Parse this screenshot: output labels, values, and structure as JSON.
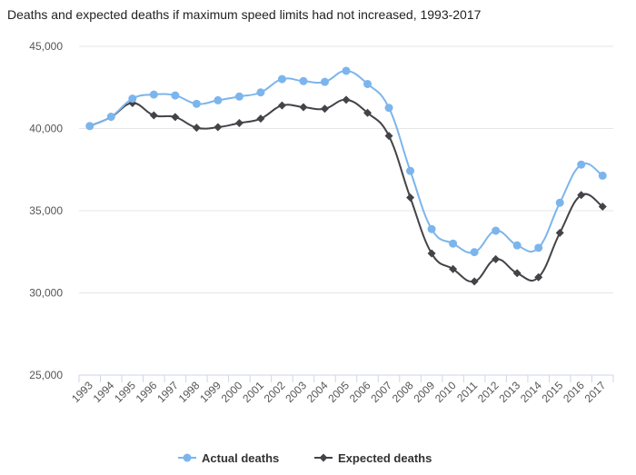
{
  "chart_data": {
    "type": "line",
    "title": "Deaths and expected deaths if maximum speed limits had not increased, 1993-2017",
    "xlabel": "",
    "ylabel": "",
    "categories": [
      "1993",
      "1994",
      "1995",
      "1996",
      "1997",
      "1998",
      "1999",
      "2000",
      "2001",
      "2002",
      "2003",
      "2004",
      "2005",
      "2006",
      "2007",
      "2008",
      "2009",
      "2010",
      "2011",
      "2012",
      "2013",
      "2014",
      "2015",
      "2016",
      "2017"
    ],
    "ylim": [
      25000,
      45000
    ],
    "yticks": [
      25000,
      30000,
      35000,
      40000,
      45000
    ],
    "ytick_labels": [
      "25,000",
      "30,000",
      "35,000",
      "40,000",
      "45,000"
    ],
    "grid": true,
    "legend": "bottom-center",
    "series": [
      {
        "name": "Actual deaths",
        "color": "#7cb5ec",
        "marker": "circle",
        "values": [
          40150,
          40716,
          41817,
          42065,
          42013,
          41501,
          41717,
          41945,
          42196,
          43005,
          42884,
          42836,
          43510,
          42708,
          41259,
          37423,
          33883,
          32999,
          32479,
          33782,
          32893,
          32744,
          35484,
          37806,
          37133
        ]
      },
      {
        "name": "Expected deaths",
        "color": "#434348",
        "marker": "diamond",
        "values": [
          40150,
          40700,
          41550,
          40800,
          40700,
          40050,
          40080,
          40330,
          40600,
          41400,
          41300,
          41200,
          41750,
          40950,
          39550,
          35800,
          32400,
          31450,
          30700,
          32050,
          31200,
          30950,
          33650,
          35950,
          35250
        ]
      }
    ]
  }
}
